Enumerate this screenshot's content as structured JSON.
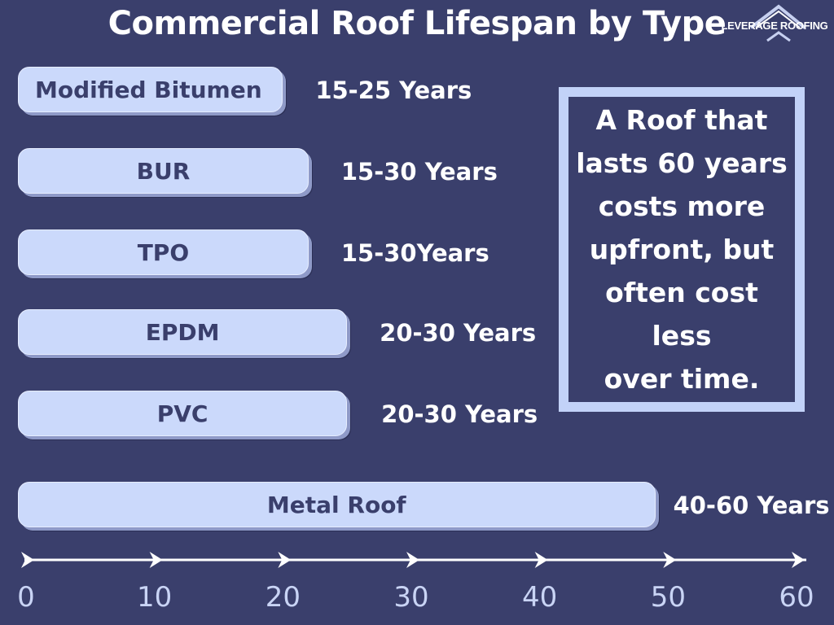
{
  "title": "Commercial Roof Lifespan by Type",
  "logo": {
    "text": "LEVERAGE ROOFING"
  },
  "chart_data": {
    "type": "bar",
    "orientation": "horizontal",
    "title": "Commercial Roof Lifespan by Type",
    "xlim": [
      0,
      60
    ],
    "grid": false,
    "legend": "none",
    "bars": [
      {
        "category": "Modified Bitumen",
        "value": 20,
        "label": "15-25 Years"
      },
      {
        "category": "BUR",
        "value": 22,
        "label": "15-30 Years"
      },
      {
        "category": "TPO",
        "value": 22,
        "label": "15-30Years"
      },
      {
        "category": "EPDM",
        "value": 25,
        "label": "20-30 Years"
      },
      {
        "category": "PVC",
        "value": 25,
        "label": "20-30 Years"
      },
      {
        "category": "Metal Roof",
        "value": 49,
        "label": "40-60 Years"
      }
    ],
    "x_ticks": [
      "0",
      "10",
      "20",
      "30",
      "40",
      "50",
      "60"
    ],
    "tick_values": [
      0,
      10,
      20,
      30,
      40,
      50,
      60
    ]
  },
  "note": {
    "lines": [
      "A Roof that",
      "lasts 60 years",
      "costs more",
      "upfront, but",
      "often cost less",
      "over time."
    ]
  },
  "colors": {
    "background": "#3a3f6c",
    "bar": "#cbd9fb",
    "bar_text": "#3a3f6c",
    "text": "#ffffff",
    "tick": "#c9d4f5"
  }
}
